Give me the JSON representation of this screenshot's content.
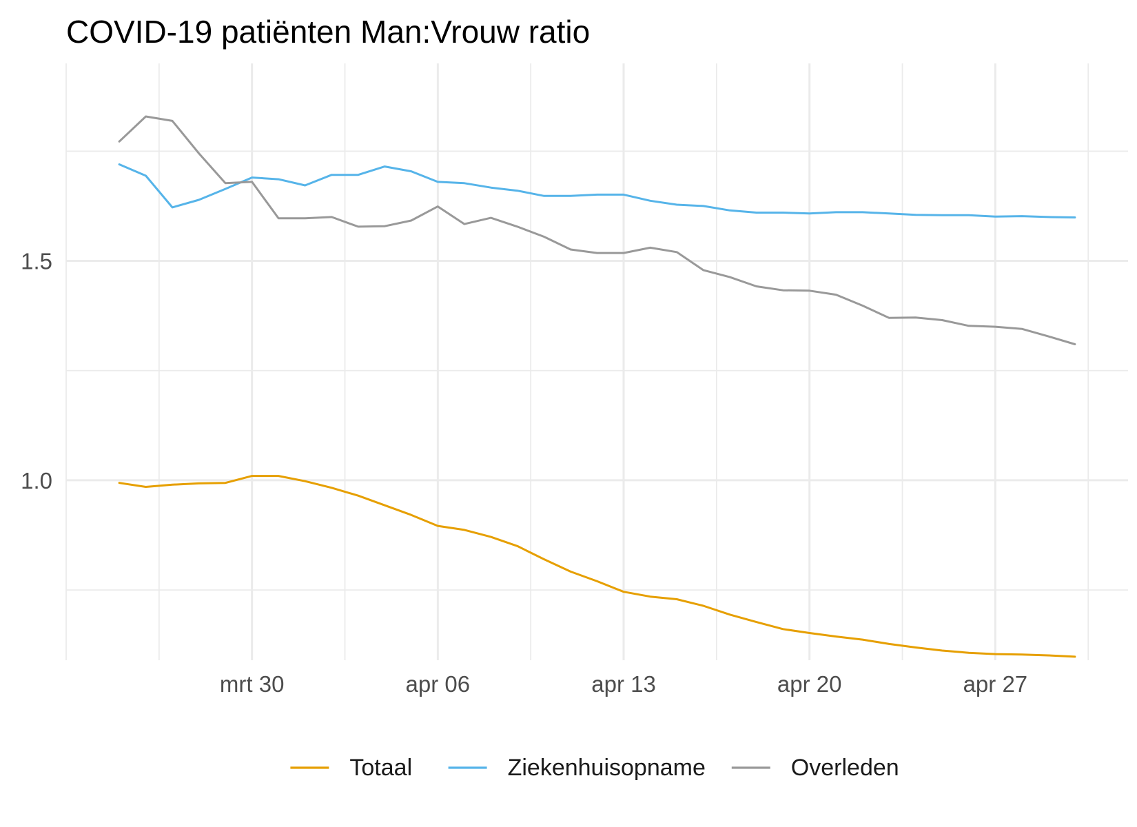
{
  "chart_data": {
    "type": "line",
    "title": "COVID-19 patiënten Man:Vrouw ratio",
    "xlabel": "",
    "ylabel": "",
    "x_type": "date",
    "x_range": [
      "2020-03-23",
      "2020-05-02"
    ],
    "ylim": [
      0.59,
      1.95
    ],
    "grid": true,
    "legend_position": "bottom",
    "x_ticks": [
      {
        "date": "2020-03-30",
        "label": "mrt 30"
      },
      {
        "date": "2020-04-06",
        "label": "apr 06"
      },
      {
        "date": "2020-04-13",
        "label": "apr 13"
      },
      {
        "date": "2020-04-20",
        "label": "apr 20"
      },
      {
        "date": "2020-04-27",
        "label": "apr 27"
      }
    ],
    "y_ticks": [
      {
        "value": 1.0,
        "label": "1.0"
      },
      {
        "value": 1.5,
        "label": "1.5"
      }
    ],
    "x": [
      "2020-03-25",
      "2020-03-26",
      "2020-03-27",
      "2020-03-28",
      "2020-03-29",
      "2020-03-30",
      "2020-03-31",
      "2020-04-01",
      "2020-04-02",
      "2020-04-03",
      "2020-04-04",
      "2020-04-05",
      "2020-04-06",
      "2020-04-07",
      "2020-04-08",
      "2020-04-09",
      "2020-04-10",
      "2020-04-11",
      "2020-04-12",
      "2020-04-13",
      "2020-04-14",
      "2020-04-15",
      "2020-04-16",
      "2020-04-17",
      "2020-04-18",
      "2020-04-19",
      "2020-04-20",
      "2020-04-21",
      "2020-04-22",
      "2020-04-23",
      "2020-04-24",
      "2020-04-25",
      "2020-04-26",
      "2020-04-27",
      "2020-04-28",
      "2020-04-29",
      "2020-04-30"
    ],
    "series": [
      {
        "name": "Totaal",
        "color": "#E69F00",
        "values": [
          0.994,
          0.985,
          0.99,
          0.993,
          0.994,
          1.01,
          1.01,
          0.998,
          0.983,
          0.965,
          0.943,
          0.921,
          0.896,
          0.887,
          0.871,
          0.85,
          0.82,
          0.792,
          0.77,
          0.746,
          0.735,
          0.729,
          0.714,
          0.694,
          0.677,
          0.661,
          0.652,
          0.644,
          0.637,
          0.627,
          0.619,
          0.612,
          0.607,
          0.604,
          0.603,
          0.601,
          0.598
        ]
      },
      {
        "name": "Ziekenhuisopname",
        "color": "#56B4E9",
        "values": [
          1.72,
          1.694,
          1.622,
          1.639,
          1.664,
          1.69,
          1.686,
          1.672,
          1.696,
          1.696,
          1.715,
          1.704,
          1.68,
          1.677,
          1.667,
          1.66,
          1.648,
          1.648,
          1.651,
          1.651,
          1.637,
          1.628,
          1.625,
          1.615,
          1.61,
          1.61,
          1.608,
          1.611,
          1.611,
          1.608,
          1.605,
          1.604,
          1.604,
          1.601,
          1.602,
          1.6,
          1.599
        ]
      },
      {
        "name": "Overleden",
        "color": "#999999",
        "values": [
          1.772,
          1.829,
          1.819,
          1.745,
          1.677,
          1.68,
          1.597,
          1.597,
          1.6,
          1.578,
          1.579,
          1.592,
          1.624,
          1.584,
          1.598,
          1.578,
          1.555,
          1.526,
          1.518,
          1.518,
          1.53,
          1.52,
          1.479,
          1.463,
          1.442,
          1.433,
          1.432,
          1.423,
          1.398,
          1.37,
          1.371,
          1.365,
          1.352,
          1.35,
          1.345,
          1.328,
          1.31
        ]
      }
    ]
  }
}
